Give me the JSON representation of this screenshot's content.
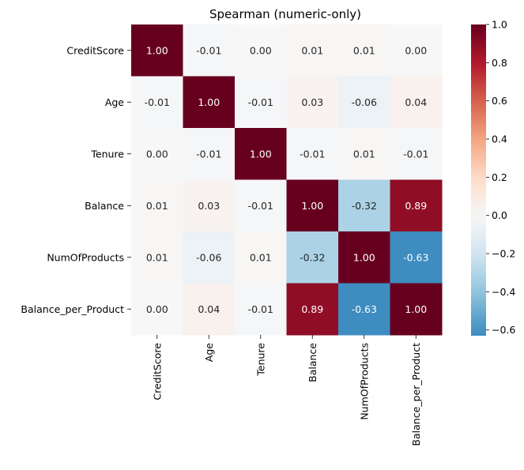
{
  "chart_data": {
    "type": "heatmap",
    "title": "Spearman (numeric-only)",
    "xlabel": "",
    "ylabel": "",
    "row_labels": [
      "CreditScore",
      "Age",
      "Tenure",
      "Balance",
      "NumOfProducts",
      "Balance_per_Product"
    ],
    "col_labels": [
      "CreditScore",
      "Age",
      "Tenure",
      "Balance",
      "NumOfProducts",
      "Balance_per_Product"
    ],
    "values": [
      [
        1.0,
        -0.01,
        0.0,
        0.01,
        0.01,
        0.0
      ],
      [
        -0.01,
        1.0,
        -0.01,
        0.03,
        -0.06,
        0.04
      ],
      [
        0.0,
        -0.01,
        1.0,
        -0.01,
        0.01,
        -0.01
      ],
      [
        0.01,
        0.03,
        -0.01,
        1.0,
        -0.32,
        0.89
      ],
      [
        0.01,
        -0.06,
        0.01,
        -0.32,
        1.0,
        -0.63
      ],
      [
        0.0,
        0.04,
        -0.01,
        0.89,
        -0.63,
        1.0
      ]
    ],
    "cell_labels": [
      [
        "1.00",
        "-0.01",
        "0.00",
        "0.01",
        "0.01",
        "0.00"
      ],
      [
        "-0.01",
        "1.00",
        "-0.01",
        "0.03",
        "-0.06",
        "0.04"
      ],
      [
        "0.00",
        "-0.01",
        "1.00",
        "-0.01",
        "0.01",
        "-0.01"
      ],
      [
        "0.01",
        "0.03",
        "-0.01",
        "1.00",
        "-0.32",
        "0.89"
      ],
      [
        "0.01",
        "-0.06",
        "0.01",
        "-0.32",
        "1.00",
        "-0.63"
      ],
      [
        "0.00",
        "0.04",
        "-0.01",
        "0.89",
        "-0.63",
        "1.00"
      ]
    ],
    "colormap": "RdBu_r",
    "color_range": [
      -0.63,
      1.0
    ],
    "colorbar_ticks": [
      1.0,
      0.8,
      0.6,
      0.4,
      0.2,
      0.0,
      -0.2,
      -0.4,
      -0.6
    ],
    "colorbar_tick_labels": [
      "1.0",
      "0.8",
      "0.6",
      "0.4",
      "0.2",
      "0.0",
      "−0.2",
      "−0.4",
      "−0.6"
    ],
    "grid": false,
    "legend": "colorbar-right"
  },
  "colors": {
    "deep_red": "#67001f",
    "red": "#b2182b",
    "salmon": "#d6604d",
    "light_salmon": "#f4a582",
    "pale_peach": "#fddbc7",
    "white": "#f7f7f7",
    "pale_blue": "#d1e5f0",
    "light_blue": "#92c5de",
    "blue": "#4393c3",
    "dark_blue": "#2166ac",
    "deep_blue": "#053061"
  }
}
